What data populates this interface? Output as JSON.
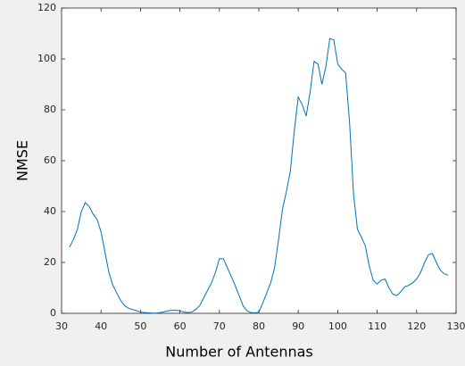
{
  "chart_data": {
    "type": "line",
    "xlabel": "Number of Antennas",
    "ylabel": "NMSE",
    "x": [
      32,
      33,
      34,
      35,
      36,
      37,
      38,
      39,
      40,
      41,
      42,
      43,
      44,
      45,
      46,
      47,
      48,
      49,
      50,
      51,
      52,
      53,
      54,
      55,
      56,
      57,
      58,
      59,
      60,
      61,
      62,
      63,
      64,
      65,
      66,
      67,
      68,
      69,
      70,
      71,
      72,
      73,
      74,
      75,
      76,
      77,
      78,
      79,
      80,
      81,
      82,
      83,
      84,
      85,
      86,
      87,
      88,
      89,
      90,
      91,
      92,
      93,
      94,
      95,
      96,
      97,
      98,
      99,
      100,
      101,
      102,
      103,
      104,
      105,
      106,
      107,
      108,
      109,
      110,
      111,
      112,
      113,
      114,
      115,
      116,
      117,
      118,
      119,
      120,
      121,
      122,
      123,
      124,
      125,
      126,
      127,
      128
    ],
    "series": [
      {
        "name": "NMSE",
        "color": "#0072bd",
        "values": [
          26,
          29,
          33,
          40,
          43.5,
          42,
          39,
          37,
          32,
          24,
          16,
          11,
          8,
          5,
          3,
          2,
          1.5,
          1,
          0.5,
          0.3,
          0.2,
          0.1,
          0.1,
          0.3,
          0.6,
          1,
          1.2,
          1.2,
          1,
          0.5,
          0.3,
          0.5,
          1.5,
          3,
          6,
          9,
          12,
          16,
          21.5,
          21.5,
          18,
          14.5,
          11,
          7,
          3,
          1,
          0.3,
          0.2,
          0.5,
          4,
          8,
          12,
          18,
          29,
          41,
          48,
          56,
          72,
          85,
          82,
          77.5,
          87,
          99,
          98,
          90,
          97,
          108,
          107.5,
          98,
          96,
          94.5,
          75,
          47,
          33,
          30,
          26.5,
          18.5,
          13,
          11.5,
          13,
          13.5,
          10,
          7.5,
          7,
          8.5,
          10.5,
          11,
          12,
          13.5,
          16,
          20,
          23,
          23.5,
          20,
          17,
          15.5,
          15
        ]
      }
    ],
    "xlim": [
      30,
      130
    ],
    "xticks": [
      30,
      40,
      50,
      60,
      70,
      80,
      90,
      100,
      110,
      120,
      130
    ],
    "ylim": [
      0,
      120
    ],
    "yticks": [
      0,
      20,
      40,
      60,
      80,
      100,
      120
    ],
    "grid": false
  }
}
